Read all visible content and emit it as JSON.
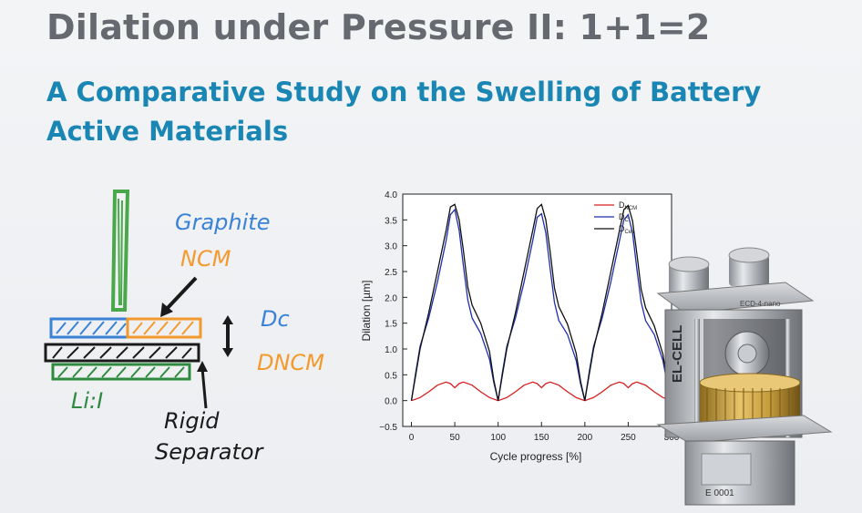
{
  "header": {
    "title": "Dilation under Pressure II: 1+1=2",
    "subtitle": "A Comparative Study on the Swelling of Battery Active Materials"
  },
  "sketch": {
    "labels": {
      "graphite": "Graphite",
      "ncm": "NCM",
      "dc": "Dc",
      "dncm": "DNCM",
      "li": "Li:I",
      "rigid": "Rigid",
      "separator": "Separator"
    },
    "colors": {
      "green": "#4aa84a",
      "blue": "#3a82d6",
      "orange": "#f39a2e",
      "black": "#1a1a1a",
      "darkgreen": "#2e8a3e"
    }
  },
  "chart_data": {
    "type": "line",
    "title": "",
    "xlabel": "Cycle progress [%]",
    "ylabel": "Dilation [µm]",
    "xlim": [
      -10,
      300
    ],
    "ylim": [
      -0.5,
      4.0
    ],
    "xticks": [
      0,
      50,
      100,
      150,
      200,
      250,
      300
    ],
    "yticks": [
      -0.5,
      0.0,
      0.5,
      1.0,
      1.5,
      2.0,
      2.5,
      3.0,
      3.5,
      4.0
    ],
    "legend_position": "top-right",
    "series": [
      {
        "name": "D_NCM",
        "label_main": "D",
        "label_sub": "NCM",
        "color": "#d62020",
        "x": [
          0,
          10,
          20,
          30,
          40,
          45,
          50,
          55,
          60,
          70,
          80,
          90,
          100,
          110,
          120,
          130,
          140,
          145,
          150,
          155,
          160,
          170,
          180,
          190,
          200,
          210,
          220,
          230,
          240,
          245,
          250,
          255,
          260,
          270,
          280,
          290,
          300
        ],
        "y": [
          0,
          0.06,
          0.17,
          0.3,
          0.36,
          0.33,
          0.25,
          0.33,
          0.36,
          0.3,
          0.17,
          0.06,
          0,
          0.06,
          0.17,
          0.3,
          0.36,
          0.33,
          0.25,
          0.33,
          0.36,
          0.3,
          0.17,
          0.06,
          0,
          0.06,
          0.17,
          0.3,
          0.36,
          0.33,
          0.25,
          0.33,
          0.36,
          0.3,
          0.17,
          0.06,
          0
        ]
      },
      {
        "name": "D_C",
        "label_main": "D",
        "label_sub": "C",
        "color": "#1f2fb0",
        "x": [
          0,
          5,
          10,
          20,
          30,
          40,
          45,
          50,
          55,
          60,
          65,
          70,
          80,
          90,
          95,
          100,
          105,
          110,
          120,
          130,
          140,
          145,
          150,
          155,
          160,
          165,
          170,
          180,
          190,
          195,
          200,
          205,
          210,
          220,
          230,
          240,
          245,
          250,
          255,
          260,
          265,
          270,
          280,
          290,
          295,
          300
        ],
        "y": [
          0,
          0.55,
          1.05,
          1.6,
          2.3,
          3.1,
          3.6,
          3.7,
          3.3,
          2.6,
          1.95,
          1.6,
          1.3,
          0.8,
          0.35,
          0,
          0.55,
          1.05,
          1.6,
          2.3,
          3.1,
          3.55,
          3.62,
          3.25,
          2.55,
          1.9,
          1.55,
          1.28,
          0.78,
          0.33,
          0,
          0.55,
          1.05,
          1.6,
          2.3,
          3.1,
          3.5,
          3.6,
          3.25,
          2.55,
          1.9,
          1.55,
          1.28,
          0.78,
          0.33,
          0
        ]
      },
      {
        "name": "D_Cell",
        "label_main": "D",
        "label_sub": "Cell",
        "color": "#111111",
        "x": [
          0,
          5,
          10,
          20,
          30,
          40,
          45,
          50,
          55,
          60,
          65,
          70,
          80,
          90,
          95,
          100,
          105,
          110,
          120,
          130,
          140,
          145,
          150,
          155,
          160,
          165,
          170,
          180,
          190,
          195,
          200,
          205,
          210,
          220,
          230,
          240,
          245,
          250,
          255,
          260,
          265,
          270,
          280,
          290,
          295,
          300
        ],
        "y": [
          0,
          0.5,
          1.0,
          1.7,
          2.5,
          3.3,
          3.75,
          3.8,
          3.5,
          2.9,
          2.2,
          1.85,
          1.5,
          0.95,
          0.4,
          0,
          0.5,
          1.0,
          1.7,
          2.5,
          3.3,
          3.72,
          3.8,
          3.5,
          2.88,
          2.18,
          1.82,
          1.48,
          0.92,
          0.38,
          0,
          0.5,
          1.0,
          1.7,
          2.5,
          3.3,
          3.7,
          3.78,
          3.48,
          2.85,
          2.15,
          1.8,
          1.45,
          0.9,
          0.36,
          0
        ]
      }
    ]
  },
  "device": {
    "brand": "EL-CELL",
    "top_label": "ECD-4-nano",
    "serial": "E 0001"
  }
}
